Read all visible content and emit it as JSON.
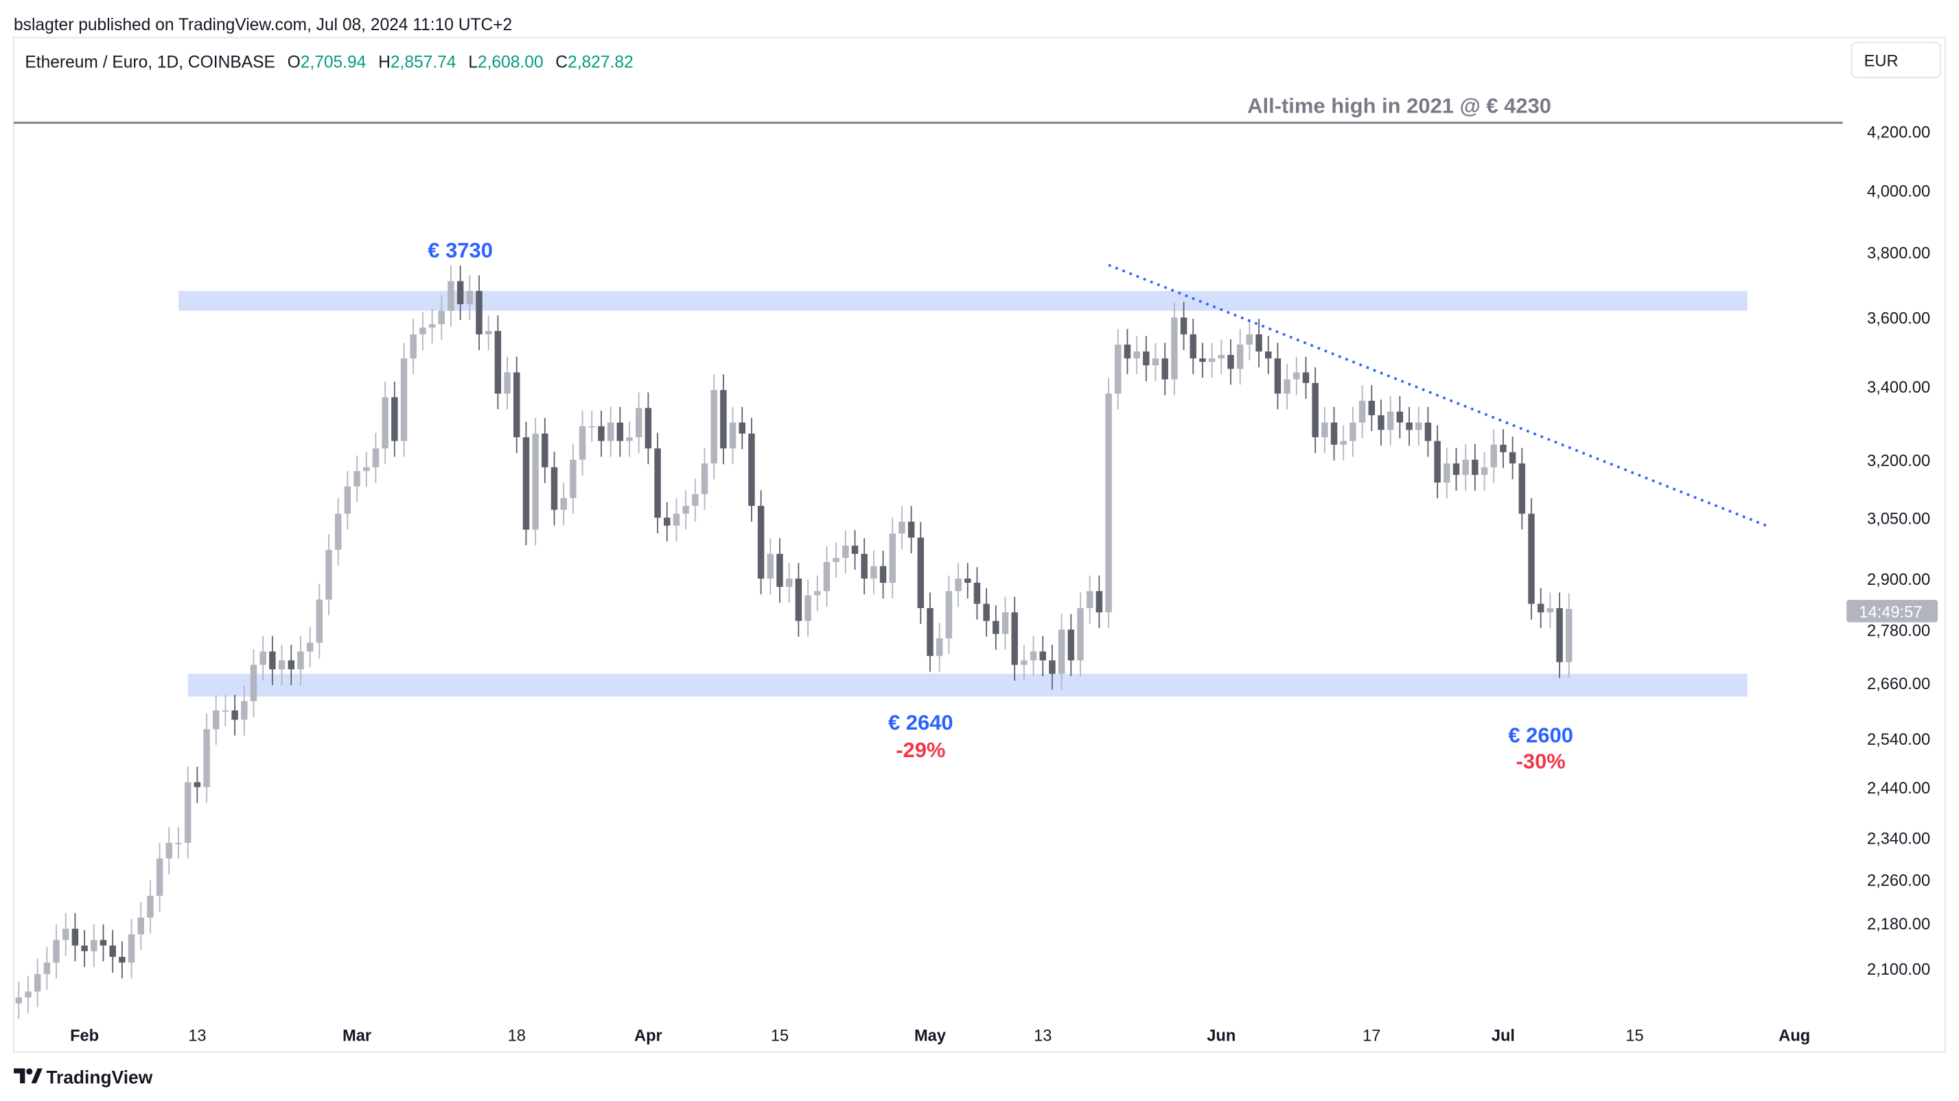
{
  "publisher_line": "bslagter published on TradingView.com, Jul 08, 2024 11:10 UTC+2",
  "legend": {
    "symbol": "Ethereum / Euro, 1D, COINBASE",
    "o_label": "O",
    "o_value": "2,705.94",
    "h_label": "H",
    "h_value": "2,857.74",
    "l_label": "L",
    "l_value": "2,608.00",
    "c_label": "C",
    "c_value": "2,827.82"
  },
  "currency_button": "EUR",
  "countdown": "14:49:57",
  "footer_logo": "TradingView",
  "colors": {
    "up_candle": "#b2b5be",
    "down_candle": "#5d606b",
    "zone": "#d4e0fb",
    "annotation_blue": "#2962ff",
    "annotation_red": "#f23645",
    "ohlc_green": "#089981",
    "ath_line": "#787b86"
  },
  "chart_data": {
    "type": "candlestick",
    "scale": "log",
    "ylim": [
      2040,
      4330
    ],
    "start_date": "2024-01-25",
    "close": [
      2050,
      2060,
      2090,
      2110,
      2150,
      2170,
      2140,
      2130,
      2150,
      2140,
      2120,
      2110,
      2160,
      2190,
      2230,
      2300,
      2330,
      2330,
      2450,
      2440,
      2560,
      2600,
      2600,
      2580,
      2620,
      2700,
      2730,
      2690,
      2710,
      2690,
      2730,
      2750,
      2850,
      2970,
      3060,
      3130,
      3170,
      3180,
      3230,
      3370,
      3250,
      3480,
      3550,
      3570,
      3580,
      3620,
      3710,
      3640,
      3680,
      3550,
      3560,
      3380,
      3440,
      3260,
      3020,
      3270,
      3180,
      3070,
      3100,
      3200,
      3290,
      3290,
      3250,
      3300,
      3250,
      3260,
      3340,
      3230,
      3050,
      3030,
      3060,
      3080,
      3110,
      3190,
      3390,
      3230,
      3300,
      3270,
      3080,
      2900,
      2960,
      2880,
      2900,
      2800,
      2860,
      2870,
      2940,
      2950,
      2980,
      2960,
      2900,
      2930,
      2890,
      3010,
      3040,
      3000,
      2830,
      2720,
      2760,
      2870,
      2900,
      2890,
      2840,
      2800,
      2770,
      2820,
      2700,
      2710,
      2730,
      2710,
      2680,
      2780,
      2710,
      2830,
      2870,
      2820,
      3380,
      3520,
      3480,
      3500,
      3460,
      3480,
      3420,
      3600,
      3550,
      3480,
      3470,
      3480,
      3490,
      3450,
      3520,
      3550,
      3500,
      3480,
      3380,
      3420,
      3440,
      3410,
      3260,
      3300,
      3240,
      3250,
      3300,
      3360,
      3320,
      3280,
      3330,
      3300,
      3280,
      3300,
      3250,
      3140,
      3190,
      3160,
      3200,
      3160,
      3180,
      3240,
      3220,
      3190,
      3060,
      2840,
      2820,
      2830,
      2706,
      2828
    ],
    "first_open": 2040,
    "y_ticks": [
      {
        "value": 4200,
        "label": "4,200.00"
      },
      {
        "value": 4000,
        "label": "4,000.00"
      },
      {
        "value": 3800,
        "label": "3,800.00"
      },
      {
        "value": 3600,
        "label": "3,600.00"
      },
      {
        "value": 3400,
        "label": "3,400.00"
      },
      {
        "value": 3200,
        "label": "3,200.00"
      },
      {
        "value": 3050,
        "label": "3,050.00"
      },
      {
        "value": 2900,
        "label": "2,900.00"
      },
      {
        "value": 2780,
        "label": "2,780.00"
      },
      {
        "value": 2660,
        "label": "2,660.00"
      },
      {
        "value": 2540,
        "label": "2,540.00"
      },
      {
        "value": 2440,
        "label": "2,440.00"
      },
      {
        "value": 2340,
        "label": "2,340.00"
      },
      {
        "value": 2260,
        "label": "2,260.00"
      },
      {
        "value": 2180,
        "label": "2,180.00"
      },
      {
        "value": 2100,
        "label": "2,100.00"
      }
    ],
    "x_ticks": [
      {
        "date": "2024-02-01",
        "label": "Feb"
      },
      {
        "date": "2024-02-13",
        "label": "13"
      },
      {
        "date": "2024-03-01",
        "label": "Mar"
      },
      {
        "date": "2024-03-18",
        "label": "18"
      },
      {
        "date": "2024-04-01",
        "label": "Apr"
      },
      {
        "date": "2024-04-15",
        "label": "15"
      },
      {
        "date": "2024-05-01",
        "label": "May"
      },
      {
        "date": "2024-05-13",
        "label": "13"
      },
      {
        "date": "2024-06-01",
        "label": "Jun"
      },
      {
        "date": "2024-06-17",
        "label": "17"
      },
      {
        "date": "2024-07-01",
        "label": "Jul"
      },
      {
        "date": "2024-07-15",
        "label": "15"
      },
      {
        "date": "2024-08-01",
        "label": "Aug"
      }
    ],
    "ath_line": {
      "value": 4230,
      "label": "All-time high in 2021 @ € 4230"
    },
    "zones": [
      {
        "from_date": "2024-02-11",
        "to_date": "2024-07-27",
        "low": 3620,
        "high": 3680
      },
      {
        "from_date": "2024-02-12",
        "to_date": "2024-07-27",
        "low": 2630,
        "high": 2680
      }
    ],
    "trendline": {
      "from_date": "2024-05-20",
      "from_value": 3760,
      "to_date": "2024-07-29",
      "to_value": 3030
    },
    "annotations": [
      {
        "date": "2024-03-12",
        "price_label": "€ 3730",
        "pct_label": ""
      },
      {
        "date": "2024-04-30",
        "price_label": "€ 2640",
        "pct_label": "-29%"
      },
      {
        "date": "2024-07-05",
        "price_label": "€ 2600",
        "pct_label": "-30%"
      }
    ]
  }
}
